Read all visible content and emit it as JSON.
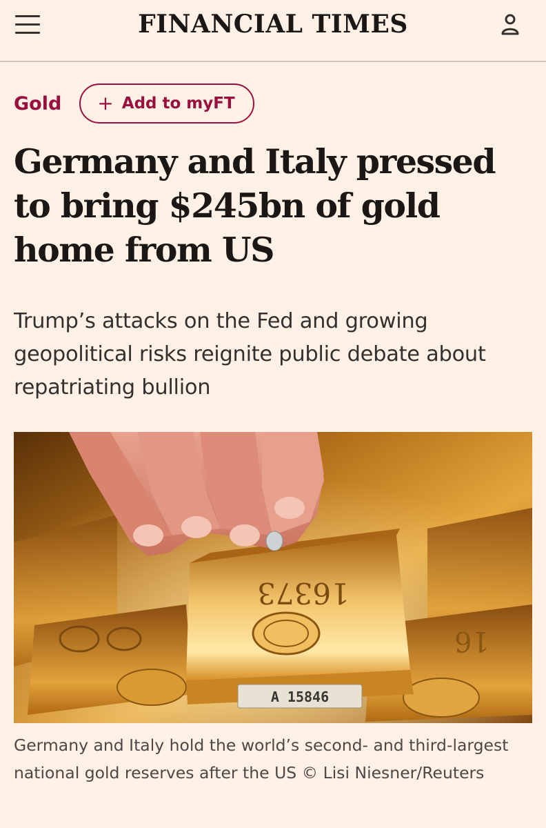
{
  "header": {
    "masthead": "FINANCIAL TIMES",
    "menu_icon": "hamburger-menu-icon",
    "account_icon": "user-account-icon"
  },
  "topic": {
    "label": "Gold",
    "add_myft_label": "Add to myFT",
    "add_myft_icon": "plus-icon"
  },
  "article": {
    "headline": "Germany and Italy pressed to bring $245bn of gold home from US",
    "standfirst": "Trump’s attacks on the Fed and growing geopolitical risks reignite public debate about repatriating bullion",
    "image": {
      "bar_stamp_number": "A 15846",
      "bar_engraved_number": "16373"
    },
    "caption": "Germany and Italy hold the world’s second- and third-largest national gold reserves after the US © Lisi Niesner/Reuters"
  },
  "colors": {
    "background": "#FFF1E5",
    "claret": "#990F3D",
    "text": "#1A1715",
    "divider": "#CFC5BC"
  }
}
